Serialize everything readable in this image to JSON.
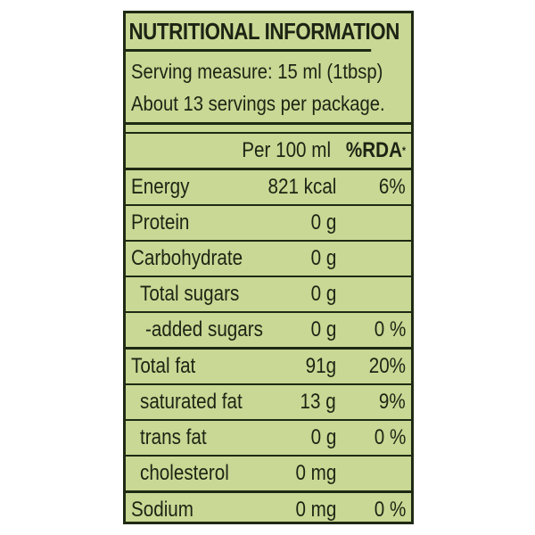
{
  "label": {
    "title": "NUTRITIONAL INFORMATION",
    "serving_measure": "Serving measure: 15 ml (1tbsp)",
    "servings_per_package": "About 13 servings per package.",
    "column_headers": {
      "per": "Per 100 ml",
      "rda": "%RDA",
      "rda_marker": "*"
    },
    "rows": [
      {
        "name": "Energy",
        "value": "821 kcal",
        "rda": "6%"
      },
      {
        "name": "Protein",
        "value": "0 g",
        "rda": ""
      },
      {
        "name": "Carbohydrate",
        "value": "0 g",
        "rda": ""
      },
      {
        "name": "Total sugars",
        "value": "0 g",
        "rda": ""
      },
      {
        "name": "-added sugars",
        "value": "0 g",
        "rda": "0 %"
      },
      {
        "name": "Total fat",
        "value": "91g",
        "rda": "20%"
      },
      {
        "name": "saturated fat",
        "value": "13 g",
        "rda": "9%"
      },
      {
        "name": "trans fat",
        "value": "0 g",
        "rda": "0 %"
      },
      {
        "name": "cholesterol",
        "value": "0 mg",
        "rda": ""
      },
      {
        "name": "Sodium",
        "value": "0 mg",
        "rda": "0 %"
      }
    ]
  },
  "colors": {
    "label_background": "#c9d894",
    "rule_color": "#1e2a14",
    "text_color": "#1c2414"
  }
}
